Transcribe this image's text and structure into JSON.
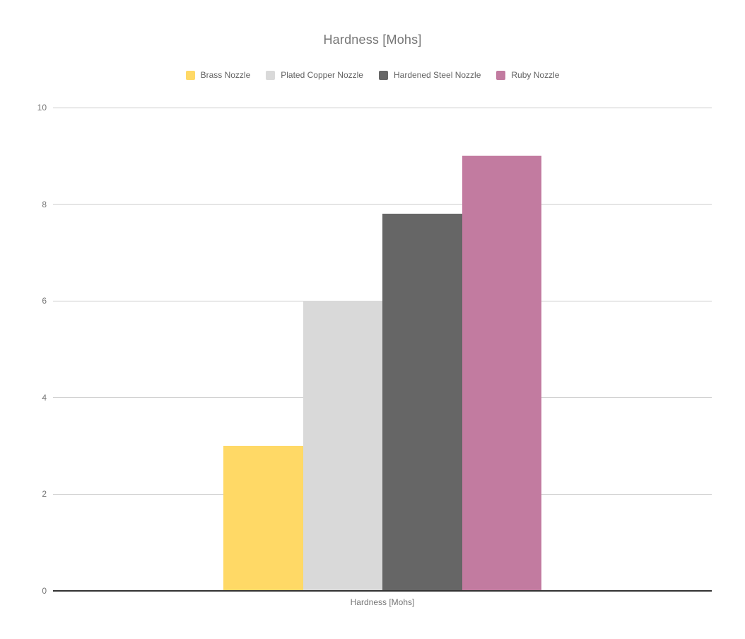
{
  "title": "Hardness [Mohs]",
  "legend": {
    "items": [
      {
        "label": "Brass Nozzle",
        "color": "#FFD966"
      },
      {
        "label": "Plated Copper Nozzle",
        "color": "#D9D9D9"
      },
      {
        "label": "Hardened Steel Nozzle",
        "color": "#666666"
      },
      {
        "label": "Ruby Nozzle",
        "color": "#C27BA0"
      }
    ]
  },
  "chart_data": {
    "type": "bar",
    "title": "Hardness [Mohs]",
    "categories": [
      "Hardness [Mohs]"
    ],
    "series": [
      {
        "name": "Brass Nozzle",
        "color": "#FFD966",
        "values": [
          3
        ]
      },
      {
        "name": "Plated Copper Nozzle",
        "color": "#D9D9D9",
        "values": [
          6
        ]
      },
      {
        "name": "Hardened Steel Nozzle",
        "color": "#666666",
        "values": [
          7.8
        ]
      },
      {
        "name": "Ruby Nozzle",
        "color": "#C27BA0",
        "values": [
          9
        ]
      }
    ],
    "xlabel": "Hardness [Mohs]",
    "ylabel": "",
    "ylim": [
      0,
      10
    ],
    "yticks": [
      0,
      2,
      4,
      6,
      8,
      10
    ],
    "grid": true,
    "legend_position": "top",
    "colors": {
      "gridline": "#cccccc",
      "baseline": "#333333",
      "title_text": "#757575",
      "axis_text": "#757575",
      "legend_text": "#616161"
    }
  }
}
